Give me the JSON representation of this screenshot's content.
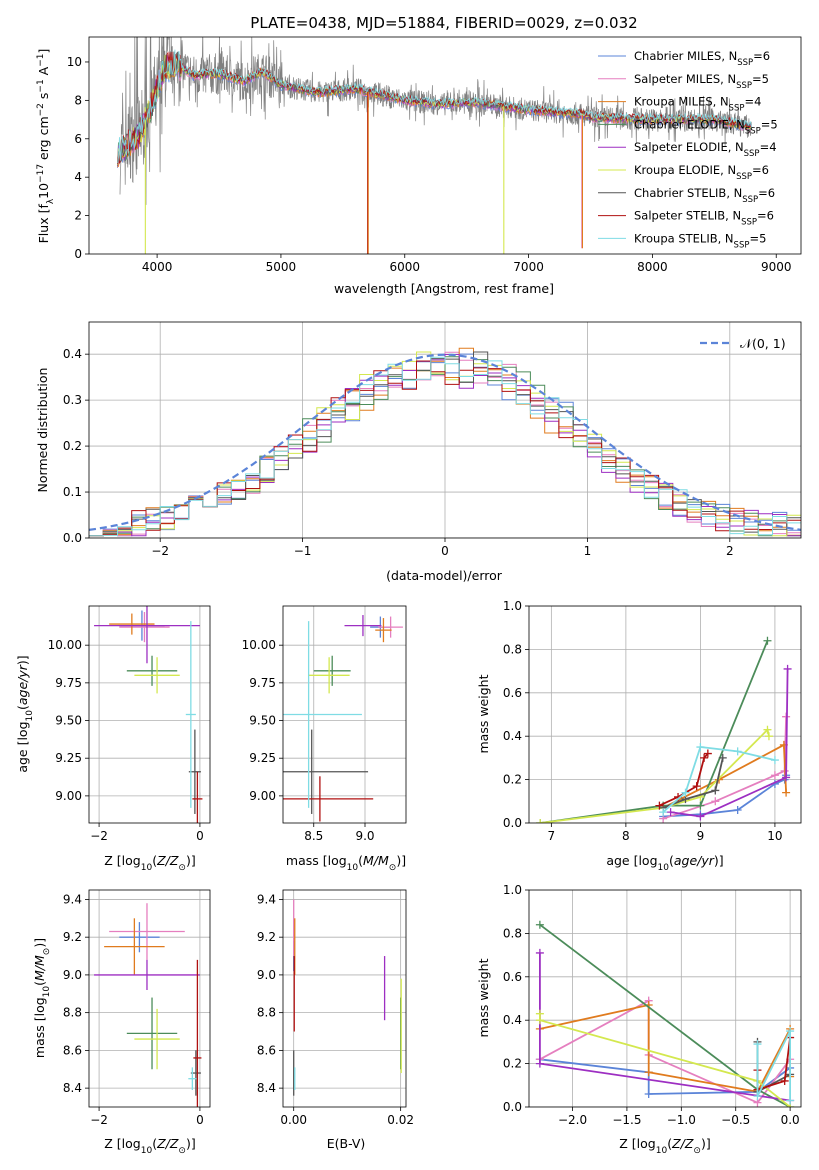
{
  "figure_title": "PLATE=0438, MJD=51884, FIBERID=0029, z=0.032",
  "colors": {
    "Chabrier MILES": "#5b84d8",
    "Salpeter MILES": "#e57fbf",
    "Kroupa MILES": "#e07b1e",
    "Chabrier ELODIE": "#4c8c5a",
    "Salpeter ELODIE": "#9d2fc2",
    "Kroupa ELODIE": "#d4e84f",
    "Chabrier STELIB": "#555555",
    "Salpeter STELIB": "#b01010",
    "Kroupa STELIB": "#7fdce4",
    "data": "#808080",
    "grid": "#b0b0b0"
  },
  "chart_data": [
    {
      "id": "spectrum",
      "type": "line",
      "title": "PLATE=0438, MJD=51884, FIBERID=0029, z=0.032",
      "xlabel": "wavelength [Angstrom, rest frame]",
      "ylabel": "Flux [f_λ 10^-17 erg cm^-2 s^-1 A^-1]",
      "xlim": [
        3450,
        9200
      ],
      "ylim": [
        0,
        11.3
      ],
      "xticks": [
        "4000",
        "5000",
        "6000",
        "7000",
        "8000",
        "9000"
      ],
      "yticks": [
        "0",
        "2",
        "4",
        "6",
        "8",
        "10"
      ],
      "grid": false,
      "legend_position": "upper-right",
      "legend": [
        {
          "label": "Chabrier MILES, N",
          "sub": "SSP",
          "suffix": "=6"
        },
        {
          "label": "Salpeter MILES, N",
          "sub": "SSP",
          "suffix": "=5"
        },
        {
          "label": "Kroupa MILES, N",
          "sub": "SSP",
          "suffix": "=4"
        },
        {
          "label": "Chabrier ELODIE, N",
          "sub": "SSP",
          "suffix": "=5"
        },
        {
          "label": "Salpeter ELODIE, N",
          "sub": "SSP",
          "suffix": "=4"
        },
        {
          "label": "Kroupa ELODIE, N",
          "sub": "SSP",
          "suffix": "=6"
        },
        {
          "label": "Chabrier STELIB, N",
          "sub": "SSP",
          "suffix": "=6"
        },
        {
          "label": "Salpeter STELIB, N",
          "sub": "SSP",
          "suffix": "=6"
        },
        {
          "label": "Kroupa STELIB, N",
          "sub": "SSP",
          "suffix": "=5"
        }
      ],
      "continuum": [
        [
          3700,
          5.3
        ],
        [
          3850,
          6.2
        ],
        [
          3950,
          7.6
        ],
        [
          4050,
          9.6
        ],
        [
          4150,
          9.9
        ],
        [
          4300,
          9.3
        ],
        [
          4500,
          9.4
        ],
        [
          4700,
          9.0
        ],
        [
          4850,
          9.5
        ],
        [
          5000,
          8.8
        ],
        [
          5300,
          8.4
        ],
        [
          5600,
          8.6
        ],
        [
          6000,
          8.0
        ],
        [
          6300,
          7.8
        ],
        [
          6550,
          7.9
        ],
        [
          7000,
          7.5
        ],
        [
          7400,
          7.3
        ],
        [
          7500,
          7.1
        ],
        [
          8000,
          7.0
        ],
        [
          8500,
          7.0
        ],
        [
          8800,
          6.6
        ]
      ],
      "model_range": [
        3680,
        8800
      ],
      "data_range": [
        3700,
        8800
      ],
      "dips": [
        {
          "x": 3905,
          "y": 0.0,
          "series": "Kroupa ELODIE"
        },
        {
          "x": 5700,
          "y": 0.0,
          "series": "Salpeter STELIB"
        },
        {
          "x": 5705,
          "y": 0.0,
          "series": "Kroupa MILES"
        },
        {
          "x": 6800,
          "y": 0.0,
          "series": "Kroupa ELODIE"
        },
        {
          "x": 7430,
          "y": 0.3,
          "series": "Salpeter MILES"
        },
        {
          "x": 7435,
          "y": 0.3,
          "series": "Kroupa MILES"
        }
      ]
    },
    {
      "id": "residual_hist",
      "type": "line",
      "xlabel": "(data-model)/error",
      "ylabel": "Normed distribution",
      "xlim": [
        -2.5,
        2.5
      ],
      "ylim": [
        0,
        0.47
      ],
      "xticks": [
        "−2",
        "−1",
        "0",
        "1",
        "2"
      ],
      "yticks": [
        "0.0",
        "0.1",
        "0.2",
        "0.3",
        "0.4"
      ],
      "grid": true,
      "bin_width": 0.1,
      "reference_curve": {
        "label": "𝒩(0, 1)",
        "mean": 0,
        "sigma": 1
      },
      "legend_position": "upper-right"
    },
    {
      "id": "age_vs_Z",
      "type": "scatter",
      "xlabel": "Z [log10(Z/Z⊙)]",
      "ylabel": "age [log10(age/yr)]",
      "xlim": [
        -2.2,
        0.2
      ],
      "ylim": [
        8.82,
        10.26
      ],
      "xticks": [
        "−2",
        "0"
      ],
      "yticks": [
        "9.00",
        "9.25",
        "9.50",
        "9.75",
        "10.00"
      ],
      "grid": true,
      "points": [
        {
          "series": "Chabrier MILES",
          "x": -1.15,
          "xerr": 0.45,
          "y": 10.13,
          "yerr": 0.1
        },
        {
          "series": "Salpeter MILES",
          "x": -1.1,
          "xerr": 0.5,
          "y": 10.12,
          "yerr": 0.1
        },
        {
          "series": "Kroupa MILES",
          "x": -1.35,
          "xerr": 0.45,
          "y": 10.14,
          "yerr": 0.07
        },
        {
          "series": "Chabrier ELODIE",
          "x": -0.95,
          "xerr": 0.5,
          "y": 9.83,
          "yerr": 0.1
        },
        {
          "series": "Salpeter ELODIE",
          "x": -1.05,
          "xerr": 1.05,
          "y": 10.13,
          "yerr": 0.25
        },
        {
          "series": "Kroupa ELODIE",
          "x": -0.85,
          "xerr": 0.45,
          "y": 9.8,
          "yerr": 0.12
        },
        {
          "series": "Chabrier STELIB",
          "x": -0.1,
          "xerr": 0.12,
          "y": 9.16,
          "yerr": 0.28
        },
        {
          "series": "Salpeter STELIB",
          "x": -0.05,
          "xerr": 0.1,
          "y": 8.98,
          "yerr": 0.18
        },
        {
          "series": "Kroupa STELIB",
          "x": -0.18,
          "xerr": 0.1,
          "y": 9.54,
          "yerr": 0.62
        }
      ]
    },
    {
      "id": "age_vs_mass",
      "type": "scatter",
      "xlabel": "mass [log10(M/M⊙)]",
      "xlim": [
        8.2,
        9.4
      ],
      "ylim": [
        8.82,
        10.26
      ],
      "xticks": [
        "8.5",
        "9.0"
      ],
      "yticks": [
        "9.00",
        "9.25",
        "9.50",
        "9.75",
        "10.00"
      ],
      "grid": true,
      "points": [
        {
          "series": "Chabrier MILES",
          "x": 9.15,
          "xerr": 0.1,
          "y": 10.12,
          "yerr": 0.07
        },
        {
          "series": "Salpeter MILES",
          "x": 9.25,
          "xerr": 0.12,
          "y": 10.12,
          "yerr": 0.07
        },
        {
          "series": "Kroupa MILES",
          "x": 9.18,
          "xerr": 0.08,
          "y": 10.1,
          "yerr": 0.08
        },
        {
          "series": "Chabrier ELODIE",
          "x": 8.68,
          "xerr": 0.18,
          "y": 9.83,
          "yerr": 0.1
        },
        {
          "series": "Salpeter ELODIE",
          "x": 8.98,
          "xerr": 0.18,
          "y": 10.13,
          "yerr": 0.07
        },
        {
          "series": "Kroupa ELODIE",
          "x": 8.65,
          "xerr": 0.2,
          "y": 9.8,
          "yerr": 0.12
        },
        {
          "series": "Chabrier STELIB",
          "x": 8.48,
          "xerr": 0.55,
          "y": 9.16,
          "yerr": 0.28
        },
        {
          "series": "Salpeter STELIB",
          "x": 8.56,
          "xerr": 0.52,
          "y": 8.98,
          "yerr": 0.15
        },
        {
          "series": "Kroupa STELIB",
          "x": 8.45,
          "xerr": 0.52,
          "y": 9.54,
          "yerr": 0.62
        }
      ]
    },
    {
      "id": "weight_vs_age",
      "type": "line",
      "xlabel": "age [log10(age/yr)]",
      "ylabel": "mass weight",
      "xlim": [
        6.7,
        10.35
      ],
      "ylim": [
        0,
        1.0
      ],
      "xticks": [
        "7",
        "8",
        "9",
        "10"
      ],
      "yticks": [
        "0.0",
        "0.2",
        "0.4",
        "0.6",
        "0.8",
        "1.0"
      ],
      "grid": true,
      "series": [
        {
          "name": "Chabrier MILES",
          "points": [
            [
              8.5,
              0.03
            ],
            [
              9.0,
              0.04
            ],
            [
              9.5,
              0.06
            ],
            [
              10.0,
              0.18
            ],
            [
              10.13,
              0.2
            ],
            [
              10.15,
              0.22
            ]
          ]
        },
        {
          "name": "Salpeter MILES",
          "points": [
            [
              8.5,
              0.02
            ],
            [
              9.2,
              0.1
            ],
            [
              10.0,
              0.22
            ],
            [
              10.13,
              0.24
            ],
            [
              10.15,
              0.49
            ]
          ]
        },
        {
          "name": "Kroupa MILES",
          "points": [
            [
              8.5,
              0.07
            ],
            [
              9.25,
              0.2
            ],
            [
              10.12,
              0.36
            ],
            [
              10.15,
              0.14
            ]
          ]
        },
        {
          "name": "Chabrier ELODIE",
          "points": [
            [
              6.85,
              0.0
            ],
            [
              8.5,
              0.08
            ],
            [
              9.0,
              0.08
            ],
            [
              9.9,
              0.84
            ]
          ]
        },
        {
          "name": "Salpeter ELODIE",
          "points": [
            [
              8.6,
              0.05
            ],
            [
              9.0,
              0.03
            ],
            [
              10.15,
              0.21
            ],
            [
              10.17,
              0.71
            ]
          ]
        },
        {
          "name": "Kroupa ELODIE",
          "points": [
            [
              6.85,
              0.0
            ],
            [
              8.5,
              0.07
            ],
            [
              9.0,
              0.12
            ],
            [
              9.9,
              0.43
            ],
            [
              9.92,
              0.4
            ]
          ]
        },
        {
          "name": "Chabrier STELIB",
          "points": [
            [
              8.5,
              0.07
            ],
            [
              8.8,
              0.11
            ],
            [
              9.2,
              0.15
            ],
            [
              9.3,
              0.3
            ]
          ]
        },
        {
          "name": "Salpeter STELIB",
          "points": [
            [
              8.45,
              0.08
            ],
            [
              8.7,
              0.12
            ],
            [
              8.95,
              0.17
            ],
            [
              9.05,
              0.3
            ],
            [
              9.1,
              0.32
            ]
          ]
        },
        {
          "name": "Kroupa STELIB",
          "points": [
            [
              8.5,
              0.05
            ],
            [
              8.8,
              0.14
            ],
            [
              9.0,
              0.35
            ],
            [
              9.5,
              0.33
            ],
            [
              10.0,
              0.29
            ]
          ]
        }
      ]
    },
    {
      "id": "mass_vs_Z",
      "type": "scatter",
      "xlabel": "Z [log10(Z/Z⊙)]",
      "ylabel": "mass [log10(M/M⊙)]",
      "xlim": [
        -2.2,
        0.2
      ],
      "ylim": [
        8.3,
        9.45
      ],
      "xticks": [
        "−2",
        "0"
      ],
      "yticks": [
        "8.4",
        "8.6",
        "8.8",
        "9.0",
        "9.2",
        "9.4"
      ],
      "grid": true,
      "points": [
        {
          "series": "Chabrier MILES",
          "x": -1.2,
          "xerr": 0.4,
          "y": 9.2,
          "yerr": 0.08
        },
        {
          "series": "Salpeter MILES",
          "x": -1.05,
          "xerr": 0.75,
          "y": 9.23,
          "yerr": 0.15
        },
        {
          "series": "Kroupa MILES",
          "x": -1.3,
          "xerr": 0.6,
          "y": 9.15,
          "yerr": 0.15
        },
        {
          "series": "Chabrier ELODIE",
          "x": -0.95,
          "xerr": 0.5,
          "y": 8.69,
          "yerr": 0.19
        },
        {
          "series": "Salpeter ELODIE",
          "x": -1.05,
          "xerr": 1.05,
          "y": 9.0,
          "yerr": 0.08
        },
        {
          "series": "Kroupa ELODIE",
          "x": -0.85,
          "xerr": 0.45,
          "y": 8.66,
          "yerr": 0.16
        },
        {
          "series": "Chabrier STELIB",
          "x": -0.08,
          "xerr": 0.1,
          "y": 8.48,
          "yerr": 0.12
        },
        {
          "series": "Salpeter STELIB",
          "x": -0.05,
          "xerr": 0.08,
          "y": 8.56,
          "yerr": 0.52
        },
        {
          "series": "Kroupa STELIB",
          "x": -0.15,
          "xerr": 0.08,
          "y": 8.45,
          "yerr": 0.06
        }
      ]
    },
    {
      "id": "mass_vs_ebv",
      "type": "scatter",
      "xlabel": "E(B-V)",
      "xlim": [
        -0.002,
        0.021
      ],
      "ylim": [
        8.3,
        9.45
      ],
      "xticks": [
        "0.00",
        "0.02"
      ],
      "yticks": [
        "8.4",
        "8.6",
        "8.8",
        "9.0",
        "9.2",
        "9.4"
      ],
      "grid": true,
      "points": [
        {
          "series": "Chabrier MILES",
          "x": 0.0,
          "y": 9.1,
          "yerr": 0.08
        },
        {
          "series": "Salpeter MILES",
          "x": 0.0,
          "y": 9.25,
          "yerr": 0.15
        },
        {
          "series": "Kroupa MILES",
          "x": 0.0002,
          "y": 9.15,
          "yerr": 0.15
        },
        {
          "series": "Chabrier ELODIE",
          "x": 0.02,
          "y": 8.69,
          "yerr": 0.19
        },
        {
          "series": "Salpeter ELODIE",
          "x": 0.017,
          "y": 8.93,
          "yerr": 0.17
        },
        {
          "series": "Kroupa ELODIE",
          "x": 0.0201,
          "y": 8.73,
          "yerr": 0.25
        },
        {
          "series": "Chabrier STELIB",
          "x": 0.0,
          "y": 8.48,
          "yerr": 0.12
        },
        {
          "series": "Salpeter STELIB",
          "x": 0.0001,
          "y": 8.9,
          "yerr": 0.2
        },
        {
          "series": "Kroupa STELIB",
          "x": 0.0002,
          "y": 8.45,
          "yerr": 0.06
        }
      ]
    },
    {
      "id": "weight_vs_Z",
      "type": "line",
      "xlabel": "Z [log10(Z/Z⊙)]",
      "ylabel": "mass weight",
      "xlim": [
        -2.4,
        0.1
      ],
      "ylim": [
        0,
        1.0
      ],
      "xticks": [
        "−2.0",
        "−1.5",
        "−1.0",
        "−0.5",
        "0.0"
      ],
      "yticks": [
        "0.0",
        "0.2",
        "0.4",
        "0.6",
        "0.8",
        "1.0"
      ],
      "grid": true,
      "series": [
        {
          "name": "Chabrier MILES",
          "points": [
            [
              -2.3,
              0.22
            ],
            [
              -1.3,
              0.16
            ],
            [
              -1.3,
              0.06
            ],
            [
              -0.3,
              0.07
            ],
            [
              0.0,
              0.18
            ]
          ]
        },
        {
          "name": "Salpeter MILES",
          "points": [
            [
              -2.3,
              0.22
            ],
            [
              -1.3,
              0.49
            ],
            [
              -1.3,
              0.24
            ],
            [
              -0.3,
              0.02
            ],
            [
              0.0,
              0.22
            ]
          ]
        },
        {
          "name": "Kroupa MILES",
          "points": [
            [
              -2.3,
              0.36
            ],
            [
              -1.3,
              0.47
            ],
            [
              -1.3,
              0.16
            ],
            [
              -0.3,
              0.07
            ],
            [
              0.0,
              0.36
            ],
            [
              0.0,
              0.14
            ]
          ]
        },
        {
          "name": "Chabrier ELODIE",
          "points": [
            [
              -2.3,
              0.84
            ],
            [
              -0.3,
              0.08
            ],
            [
              0.0,
              0.0
            ]
          ]
        },
        {
          "name": "Salpeter ELODIE",
          "points": [
            [
              -2.3,
              0.71
            ],
            [
              -2.3,
              0.2
            ],
            [
              0.0,
              0.03
            ]
          ]
        },
        {
          "name": "Kroupa ELODIE",
          "points": [
            [
              -2.3,
              0.43
            ],
            [
              -2.3,
              0.4
            ],
            [
              -0.3,
              0.12
            ],
            [
              0.0,
              0.0
            ]
          ]
        },
        {
          "name": "Chabrier STELIB",
          "points": [
            [
              -0.3,
              0.3
            ],
            [
              -0.3,
              0.07
            ],
            [
              0.0,
              0.15
            ]
          ]
        },
        {
          "name": "Salpeter STELIB",
          "points": [
            [
              -0.3,
              0.17
            ],
            [
              -0.3,
              0.08
            ],
            [
              -0.05,
              0.12
            ],
            [
              0.0,
              0.32
            ]
          ]
        },
        {
          "name": "Kroupa STELIB",
          "points": [
            [
              -0.3,
              0.29
            ],
            [
              -0.3,
              0.05
            ],
            [
              0.0,
              0.35
            ],
            [
              0.0,
              0.03
            ]
          ]
        }
      ]
    }
  ]
}
